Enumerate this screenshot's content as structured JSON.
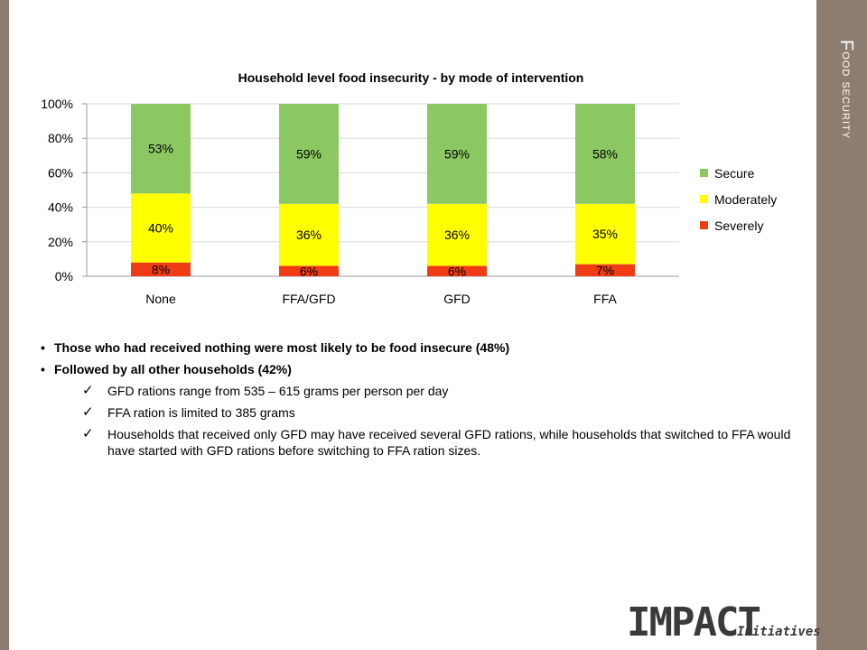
{
  "slide": {
    "section_title_cap": "F",
    "section_title_rest": "ood security"
  },
  "chart_data": {
    "type": "bar",
    "stacked": true,
    "title": "Household level food insecurity - by mode of intervention",
    "categories": [
      "None",
      "FFA/GFD",
      "GFD",
      "FFA"
    ],
    "series": [
      {
        "name": "Severely",
        "values": [
          8,
          6,
          6,
          7
        ],
        "labels": [
          "8%",
          "6%",
          "6%",
          "7%"
        ],
        "color": "#f03c14"
      },
      {
        "name": "Moderately",
        "values": [
          40,
          36,
          36,
          35
        ],
        "labels": [
          "40%",
          "36%",
          "36%",
          "35%"
        ],
        "color": "#ffff00"
      },
      {
        "name": "Secure",
        "values": [
          53,
          59,
          59,
          58
        ],
        "labels": [
          "53%",
          "59%",
          "59%",
          "58%"
        ],
        "color": "#8cc862"
      }
    ],
    "ylim": [
      0,
      100
    ],
    "yticks": [
      "0%",
      "20%",
      "40%",
      "60%",
      "80%",
      "100%"
    ],
    "grid": true,
    "legend_position": "right",
    "legend_order": [
      "Secure",
      "Moderately",
      "Severely"
    ]
  },
  "bullets": [
    {
      "text": "Those who had received nothing were most likely to be food insecure (48%)"
    },
    {
      "text": "Followed by all other households (42%)"
    }
  ],
  "checks": [
    {
      "text": "GFD rations range from 535 – 615 grams per person per day"
    },
    {
      "text": "FFA ration is limited to 385 grams"
    },
    {
      "text": "Households that received only GFD may have received several GFD rations, while households that switched to FFA would have started with GFD rations before switching to FFA ration sizes."
    }
  ],
  "logo": {
    "main": "IMPACT",
    "sub": "Initiatives"
  }
}
